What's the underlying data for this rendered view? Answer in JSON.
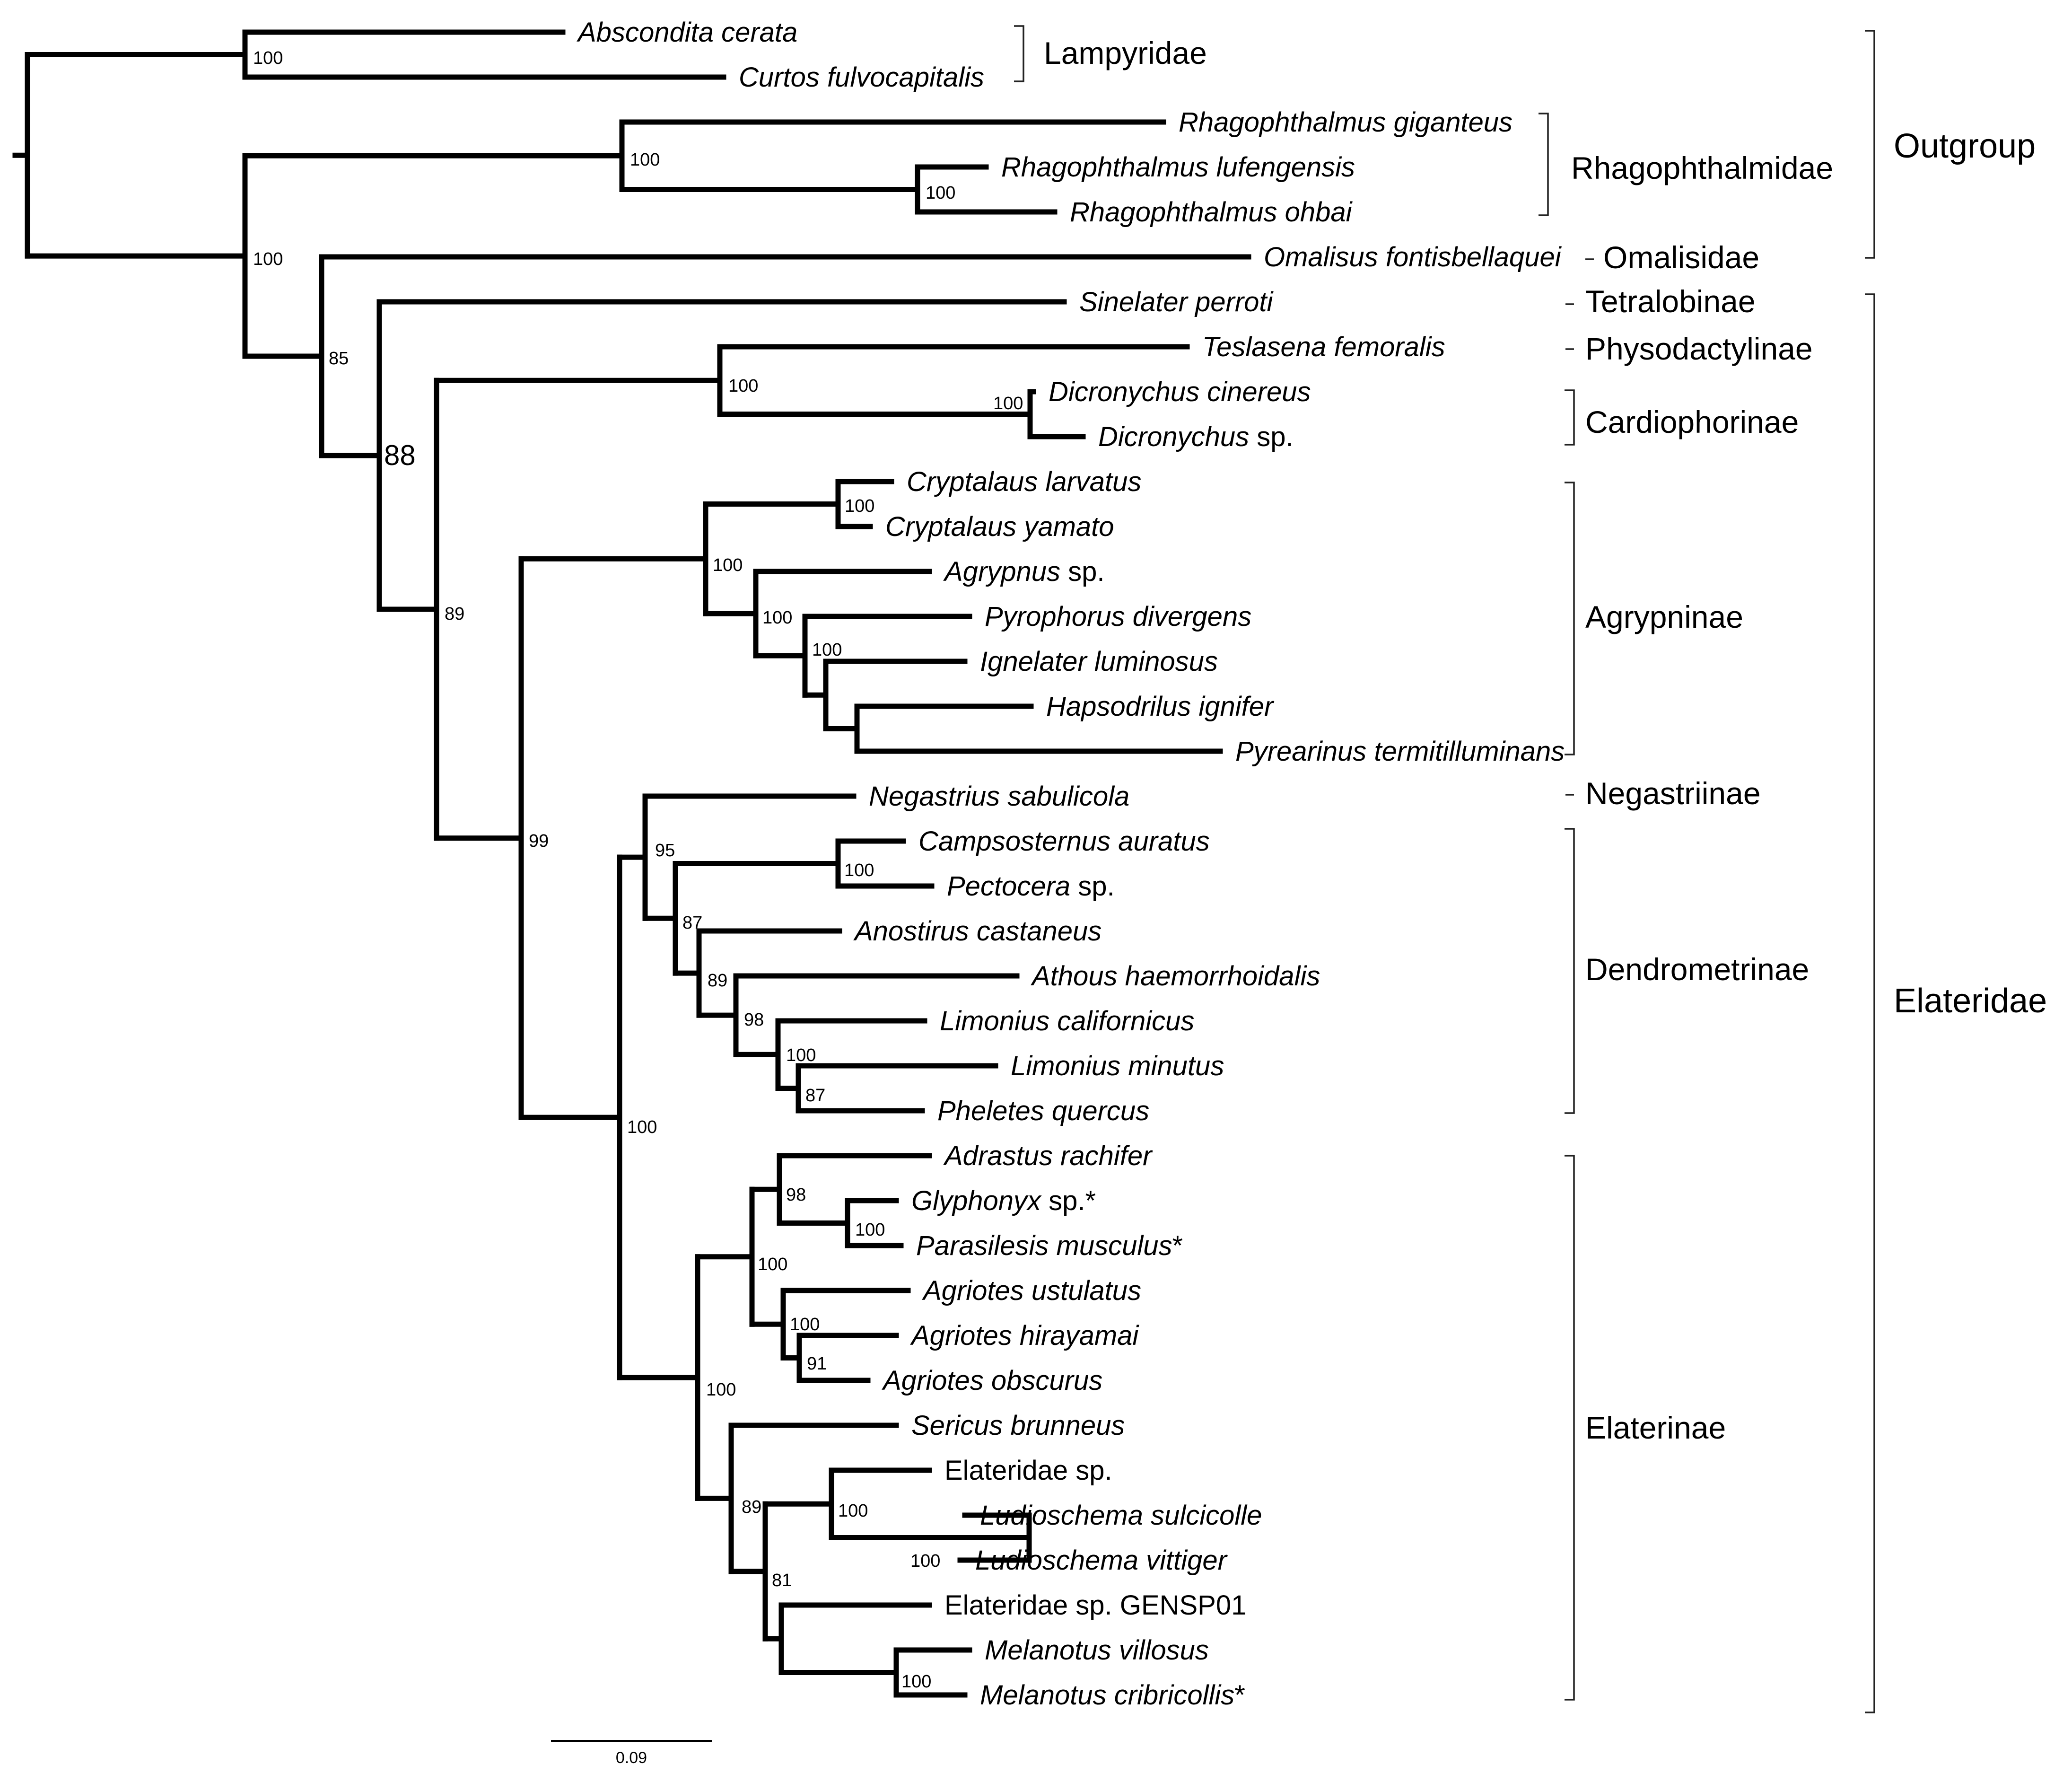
{
  "diagram": {
    "type": "phylogenetic-tree",
    "taxa": [
      {
        "id": "t1",
        "parts": [
          {
            "text": "Abscondita cerata",
            "italic": true
          }
        ]
      },
      {
        "id": "t2",
        "parts": [
          {
            "text": "Curtos fulvocapitalis",
            "italic": true
          }
        ]
      },
      {
        "id": "t3",
        "parts": [
          {
            "text": "Rhagophthalmus giganteus",
            "italic": true
          }
        ]
      },
      {
        "id": "t4",
        "parts": [
          {
            "text": "Rhagophthalmus lufengensis",
            "italic": true
          }
        ]
      },
      {
        "id": "t5",
        "parts": [
          {
            "text": "Rhagophthalmus ohbai",
            "italic": true
          }
        ]
      },
      {
        "id": "t6",
        "parts": [
          {
            "text": "Omalisus fontisbellaquei",
            "italic": true
          }
        ]
      },
      {
        "id": "t7",
        "parts": [
          {
            "text": "Sinelater perroti",
            "italic": true
          }
        ]
      },
      {
        "id": "t8",
        "parts": [
          {
            "text": "Teslasena femoralis",
            "italic": true
          }
        ]
      },
      {
        "id": "t9",
        "parts": [
          {
            "text": "Dicronychus cinereus",
            "italic": true
          }
        ]
      },
      {
        "id": "t10",
        "parts": [
          {
            "text": "Dicronychus",
            "italic": true
          },
          {
            "text": " sp.",
            "italic": false
          }
        ]
      },
      {
        "id": "t11",
        "parts": [
          {
            "text": "Cryptalaus larvatus",
            "italic": true
          }
        ]
      },
      {
        "id": "t12",
        "parts": [
          {
            "text": "Cryptalaus yamato",
            "italic": true
          }
        ]
      },
      {
        "id": "t13",
        "parts": [
          {
            "text": "Agrypnus",
            "italic": true
          },
          {
            "text": " sp.",
            "italic": false
          }
        ]
      },
      {
        "id": "t14",
        "parts": [
          {
            "text": "Pyrophorus divergens",
            "italic": true
          }
        ]
      },
      {
        "id": "t15",
        "parts": [
          {
            "text": "Ignelater luminosus",
            "italic": true
          }
        ]
      },
      {
        "id": "t16",
        "parts": [
          {
            "text": "Hapsodrilus ignifer",
            "italic": true
          }
        ]
      },
      {
        "id": "t17",
        "parts": [
          {
            "text": "Pyrearinus termitilluminans",
            "italic": true
          }
        ]
      },
      {
        "id": "t18",
        "parts": [
          {
            "text": "Negastrius sabulicola",
            "italic": true
          }
        ]
      },
      {
        "id": "t19",
        "parts": [
          {
            "text": "Campsosternus auratus",
            "italic": true
          }
        ]
      },
      {
        "id": "t20",
        "parts": [
          {
            "text": "Pectocera",
            "italic": true
          },
          {
            "text": " sp.",
            "italic": false
          }
        ]
      },
      {
        "id": "t21",
        "parts": [
          {
            "text": "Anostirus castaneus",
            "italic": true
          }
        ]
      },
      {
        "id": "t22",
        "parts": [
          {
            "text": "Athous haemorrhoidalis",
            "italic": true
          }
        ]
      },
      {
        "id": "t23",
        "parts": [
          {
            "text": "Limonius californicus",
            "italic": true
          }
        ]
      },
      {
        "id": "t24",
        "parts": [
          {
            "text": "Limonius minutus",
            "italic": true
          }
        ]
      },
      {
        "id": "t25",
        "parts": [
          {
            "text": "Pheletes quercus",
            "italic": true
          }
        ]
      },
      {
        "id": "t26",
        "parts": [
          {
            "text": "Adrastus rachifer",
            "italic": true
          }
        ]
      },
      {
        "id": "t27",
        "parts": [
          {
            "text": "Glyphonyx",
            "italic": true
          },
          {
            "text": " sp.*",
            "italic": false
          }
        ]
      },
      {
        "id": "t28",
        "parts": [
          {
            "text": "Parasilesis musculus",
            "italic": true
          },
          {
            "text": "*",
            "italic": false
          }
        ]
      },
      {
        "id": "t29",
        "parts": [
          {
            "text": "Agriotes ustulatus",
            "italic": true
          }
        ]
      },
      {
        "id": "t30",
        "parts": [
          {
            "text": "Agriotes hirayamai",
            "italic": true
          }
        ]
      },
      {
        "id": "t31",
        "parts": [
          {
            "text": "Agriotes obscurus",
            "italic": true
          }
        ]
      },
      {
        "id": "t32",
        "parts": [
          {
            "text": "Sericus brunneus",
            "italic": true
          }
        ]
      },
      {
        "id": "t33",
        "parts": [
          {
            "text": "Elateridae sp.",
            "italic": false
          }
        ]
      },
      {
        "id": "t34",
        "parts": [
          {
            "text": "Ludioschema sulcicolle",
            "italic": true
          }
        ]
      },
      {
        "id": "t35",
        "parts": [
          {
            "text": "Ludioschema vittiger",
            "italic": true
          }
        ]
      },
      {
        "id": "t36",
        "parts": [
          {
            "text": "Elateridae sp. GENSP01",
            "italic": false
          }
        ]
      },
      {
        "id": "t37",
        "parts": [
          {
            "text": "Melanotus villosus",
            "italic": true
          }
        ]
      },
      {
        "id": "t38",
        "parts": [
          {
            "text": "Melanotus cribricollis",
            "italic": true
          },
          {
            "text": "*",
            "italic": false
          }
        ]
      }
    ],
    "support_values": [
      {
        "node": "lampyridae",
        "value": "100"
      },
      {
        "node": "rhagophthalmidae",
        "value": "100"
      },
      {
        "node": "rhagophthalmus-lufengensis-ohbai",
        "value": "100"
      },
      {
        "node": "ingroup-outgroup",
        "value": "100"
      },
      {
        "node": "omalisidae-elateridae",
        "value": "85"
      },
      {
        "node": "elateridae",
        "value": "88"
      },
      {
        "node": "core-elateridae",
        "value": "89"
      },
      {
        "node": "physodactylinae-cardiophorinae",
        "value": "100"
      },
      {
        "node": "dicronychus",
        "value": "100"
      },
      {
        "node": "agrypninae-rest",
        "value": "99"
      },
      {
        "node": "agrypninae",
        "value": "100"
      },
      {
        "node": "cryptalaus",
        "value": "100"
      },
      {
        "node": "agrypnus-clade",
        "value": "100"
      },
      {
        "node": "pyrophorini",
        "value": "100"
      },
      {
        "node": "dendrometrinae-elaterinae",
        "value": "100"
      },
      {
        "node": "negastriinae-dendrometrinae",
        "value": "95"
      },
      {
        "node": "campsosternus-pectocera",
        "value": "100"
      },
      {
        "node": "anostirus-clade",
        "value": "87"
      },
      {
        "node": "athous-clade",
        "value": "89"
      },
      {
        "node": "limonius-clade",
        "value": "98"
      },
      {
        "node": "limonius-minutus-pheletes-group",
        "value": "100"
      },
      {
        "node": "limonius-minutus-pheletes",
        "value": "87"
      },
      {
        "node": "elaterinae",
        "value": "100"
      },
      {
        "node": "adrastus-agriotes",
        "value": "100"
      },
      {
        "node": "adrastus-clade",
        "value": "98"
      },
      {
        "node": "glyphonyx-parasilesis",
        "value": "100"
      },
      {
        "node": "agriotes",
        "value": "100"
      },
      {
        "node": "agriotes-hirayamai-obscurus",
        "value": "91"
      },
      {
        "node": "sericus-clade",
        "value": "89"
      },
      {
        "node": "elateridae-sp-ludioschema",
        "value": "100"
      },
      {
        "node": "ludioschema",
        "value": "100"
      },
      {
        "node": "melanotus-clade",
        "value": "81"
      },
      {
        "node": "melanotus",
        "value": "100"
      }
    ],
    "groups": [
      {
        "name": "Lampyridae"
      },
      {
        "name": "Rhagophthalmidae"
      },
      {
        "name": "Omalisidae"
      },
      {
        "name": "Tetralobinae"
      },
      {
        "name": "Physodactylinae"
      },
      {
        "name": "Cardiophorinae"
      },
      {
        "name": "Agrypninae"
      },
      {
        "name": "Negastriinae"
      },
      {
        "name": "Dendrometrinae"
      },
      {
        "name": "Elaterinae"
      },
      {
        "name": "Outgroup"
      },
      {
        "name": "Elateridae"
      }
    ],
    "scale_bar": {
      "label": "0.09"
    }
  }
}
